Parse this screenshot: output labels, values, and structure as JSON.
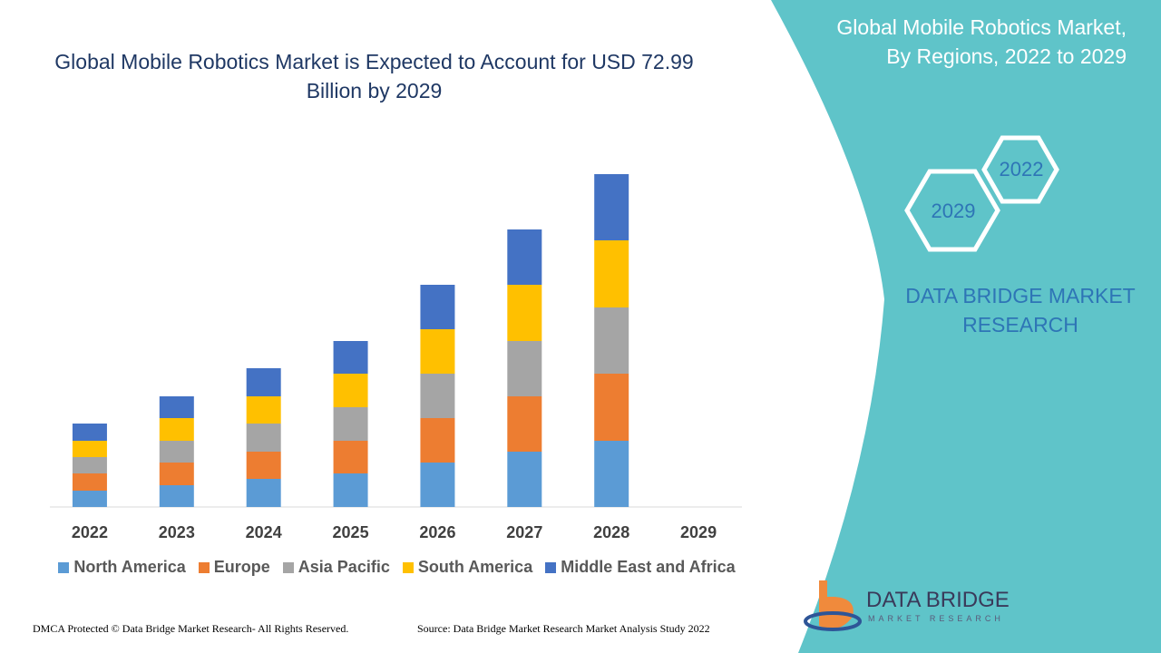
{
  "chart_data": {
    "type": "stacked-bar",
    "title": "Global Mobile Robotics Market is Expected to Account for USD 72.99 Billion by 2029",
    "categories": [
      "2022",
      "2023",
      "2024",
      "2025",
      "2026",
      "2027",
      "2028",
      "2029"
    ],
    "series": [
      {
        "name": "North America",
        "color": "#5b9bd5",
        "values": [
          18,
          24,
          31,
          37,
          49,
          61,
          73,
          null
        ]
      },
      {
        "name": "Europe",
        "color": "#ed7d31",
        "values": [
          19,
          25,
          30,
          36,
          49,
          61,
          74,
          null
        ]
      },
      {
        "name": "Asia Pacific",
        "color": "#a5a5a5",
        "values": [
          18,
          24,
          31,
          37,
          49,
          61,
          73,
          null
        ]
      },
      {
        "name": "South America",
        "color": "#ffc000",
        "values": [
          18,
          25,
          30,
          37,
          49,
          62,
          74,
          null
        ]
      },
      {
        "name": "Middle East and Africa",
        "color": "#4472c4",
        "values": [
          19,
          24,
          31,
          36,
          49,
          61,
          73,
          null
        ]
      }
    ],
    "legend": "bottom"
  },
  "side_panel": {
    "title": "Global Mobile Robotics Market, By Regions, 2022 to 2029",
    "hex_labels": [
      "2022",
      "2029"
    ],
    "brand": "DATA BRIDGE MARKET RESEARCH"
  },
  "footer": {
    "left": "DMCA Protected © Data Bridge Market Research- All Rights Reserved.",
    "right": "Source: Data Bridge Market Research Market Analysis Study 2022"
  },
  "logo": {
    "name": "DATA BRIDGE",
    "tagline": "MARKET RESEARCH"
  }
}
